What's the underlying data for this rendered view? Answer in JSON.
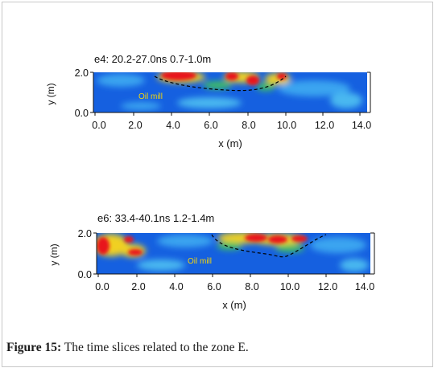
{
  "figure": {
    "caption_label": "Figure 15:",
    "caption_text": " The time slices related to the zone E."
  },
  "panels": [
    {
      "title": "e4:  20.2-27.0ns  0.7-1.0m",
      "ylabel": "y (m)",
      "xlabel": "x (m)",
      "annotation": "Oil mill",
      "x_ticks": [
        "0.0",
        "2.0",
        "4.0",
        "6.0",
        "8.0",
        "10.0",
        "12.0",
        "14.0"
      ],
      "y_ticks": [
        "2.0",
        "0.0"
      ]
    },
    {
      "title": "e6:  33.4-40.1ns  1.2-1.4m",
      "ylabel": "y (m)",
      "xlabel": "x (m)",
      "annotation": "Oil mill",
      "x_ticks": [
        "0.0",
        "2.0",
        "4.0",
        "6.0",
        "8.0",
        "10.0",
        "12.0",
        "14.0"
      ],
      "y_ticks": [
        "2.0",
        "0.0"
      ]
    }
  ],
  "colors": {
    "background": "#1560e0",
    "high": "#e8141c",
    "mid": "#f0e020",
    "low": "#30c040",
    "annotation": "#f4d40c"
  }
}
